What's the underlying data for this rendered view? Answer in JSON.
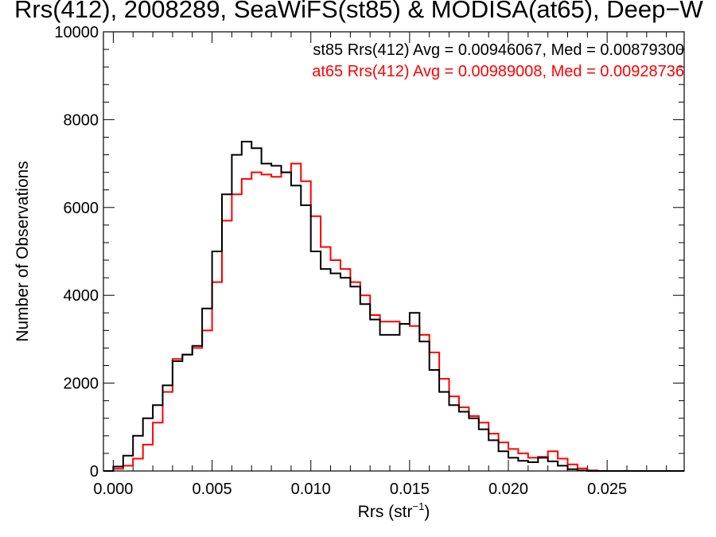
{
  "chart_data": {
    "type": "line",
    "title": "Rrs(412), 2008289, SeaWiFS(st85) & MODISA(at65), Deep−W",
    "xlabel": "Rrs (str",
    "xlabel_sup": "−1",
    "xlabel_close": ")",
    "ylabel": "Number of Observations",
    "xlim": [
      -0.0005,
      0.0289
    ],
    "ylim": [
      0,
      10000
    ],
    "x_ticks": [
      0.0,
      0.005,
      0.01,
      0.015,
      0.02,
      0.025
    ],
    "x_tick_labels": [
      "0.000",
      "0.005",
      "0.010",
      "0.015",
      "0.020",
      "0.025"
    ],
    "y_ticks": [
      0,
      2000,
      4000,
      6000,
      8000,
      10000
    ],
    "y_tick_labels": [
      "0",
      "2000",
      "4000",
      "6000",
      "8000",
      "10000"
    ],
    "grid": false,
    "legend_placement": "top-right",
    "series": [
      {
        "name": "st85 Rrs(412) Avg = 0.00946067, Med = 0.00879300",
        "color": "#000000",
        "x": [
          -0.0005,
          0.0,
          0.0005,
          0.001,
          0.0015,
          0.002,
          0.0025,
          0.003,
          0.0035,
          0.004,
          0.0045,
          0.005,
          0.0055,
          0.006,
          0.0065,
          0.007,
          0.0075,
          0.008,
          0.0085,
          0.009,
          0.0095,
          0.01,
          0.0105,
          0.011,
          0.0115,
          0.012,
          0.0125,
          0.013,
          0.0135,
          0.014,
          0.0145,
          0.015,
          0.0155,
          0.016,
          0.0165,
          0.017,
          0.0175,
          0.018,
          0.0185,
          0.019,
          0.0195,
          0.02,
          0.0205,
          0.021,
          0.0215,
          0.022,
          0.0225,
          0.023,
          0.0235,
          0.024,
          0.0245,
          0.025,
          0.026,
          0.027,
          0.028,
          0.0289
        ],
        "y": [
          0,
          100,
          350,
          800,
          1200,
          1500,
          1950,
          2500,
          2650,
          2850,
          3700,
          5000,
          6300,
          7200,
          7500,
          7350,
          7000,
          6950,
          6800,
          6500,
          6050,
          5000,
          4600,
          4500,
          4400,
          4200,
          3800,
          3450,
          3100,
          3100,
          3350,
          3600,
          2950,
          2300,
          1800,
          1500,
          1350,
          1200,
          950,
          700,
          450,
          300,
          230,
          200,
          300,
          220,
          120,
          40,
          10,
          0,
          0,
          0,
          0,
          0,
          0,
          0
        ]
      },
      {
        "name": "at65 Rrs(412) Avg = 0.00989008, Med = 0.00928736",
        "color": "#ff0000",
        "x": [
          -0.0005,
          0.0,
          0.0005,
          0.001,
          0.0015,
          0.002,
          0.0025,
          0.003,
          0.0035,
          0.004,
          0.0045,
          0.005,
          0.0055,
          0.006,
          0.0065,
          0.007,
          0.0075,
          0.008,
          0.0085,
          0.009,
          0.0095,
          0.01,
          0.0105,
          0.011,
          0.0115,
          0.012,
          0.0125,
          0.013,
          0.0135,
          0.014,
          0.0145,
          0.015,
          0.0155,
          0.016,
          0.0165,
          0.017,
          0.0175,
          0.018,
          0.0185,
          0.019,
          0.0195,
          0.02,
          0.0205,
          0.021,
          0.0215,
          0.022,
          0.0225,
          0.023,
          0.0235,
          0.024,
          0.0245,
          0.025,
          0.026,
          0.027,
          0.028,
          0.0289
        ],
        "y": [
          0,
          50,
          120,
          280,
          600,
          1100,
          1800,
          2550,
          2650,
          2800,
          3200,
          4300,
          5700,
          6300,
          6650,
          6800,
          6750,
          6700,
          6800,
          7000,
          6600,
          5800,
          5100,
          4800,
          4600,
          4300,
          4000,
          3550,
          3400,
          3400,
          3350,
          3300,
          3100,
          2700,
          2100,
          1700,
          1450,
          1250,
          1100,
          850,
          650,
          500,
          400,
          300,
          320,
          450,
          280,
          150,
          60,
          15,
          0,
          0,
          0,
          0,
          0,
          0
        ]
      }
    ]
  }
}
